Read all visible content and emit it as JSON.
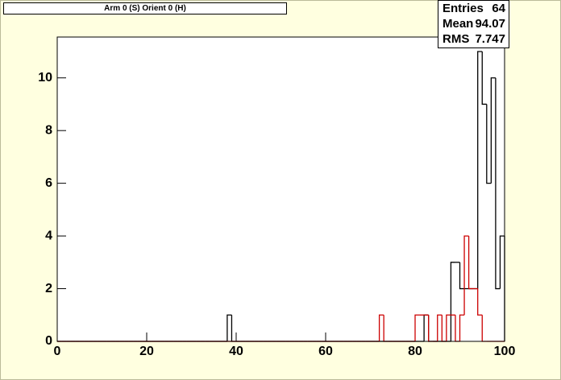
{
  "chart_data": {
    "type": "histogram",
    "title": "Arm 0 (S) Orient 0 (H)",
    "bins": [
      0,
      1,
      2,
      3,
      4,
      5,
      6,
      7,
      8,
      9,
      10,
      11,
      12,
      13,
      14,
      15,
      16,
      17,
      18,
      19,
      20,
      21,
      22,
      23,
      24,
      25,
      26,
      27,
      28,
      29,
      30,
      31,
      32,
      33,
      34,
      35,
      36,
      37,
      38,
      39,
      40,
      41,
      42,
      43,
      44,
      45,
      46,
      47,
      48,
      49,
      50,
      51,
      52,
      53,
      54,
      55,
      56,
      57,
      58,
      59,
      60,
      61,
      62,
      63,
      64,
      65,
      66,
      67,
      68,
      69,
      70,
      71,
      72,
      73,
      74,
      75,
      76,
      77,
      78,
      79,
      80,
      81,
      82,
      83,
      84,
      85,
      86,
      87,
      88,
      89,
      90,
      91,
      92,
      93,
      94,
      95,
      96,
      97,
      98,
      99,
      100
    ],
    "series": [
      {
        "color": "#000000",
        "values": [
          0,
          0,
          0,
          0,
          0,
          0,
          0,
          0,
          0,
          0,
          0,
          0,
          0,
          0,
          0,
          0,
          0,
          0,
          0,
          0,
          0,
          0,
          0,
          0,
          0,
          0,
          0,
          0,
          0,
          0,
          0,
          0,
          0,
          0,
          0,
          0,
          0,
          0,
          1,
          0,
          0,
          0,
          0,
          0,
          0,
          0,
          0,
          0,
          0,
          0,
          0,
          0,
          0,
          0,
          0,
          0,
          0,
          0,
          0,
          0,
          0,
          0,
          0,
          0,
          0,
          0,
          0,
          0,
          0,
          0,
          0,
          0,
          0,
          0,
          0,
          0,
          0,
          0,
          0,
          0,
          0,
          0,
          1,
          0,
          0,
          0,
          0,
          0,
          3,
          3,
          2,
          2,
          2,
          2,
          11,
          9,
          6,
          10,
          2,
          4
        ]
      },
      {
        "color": "#cc0000",
        "values": [
          0,
          0,
          0,
          0,
          0,
          0,
          0,
          0,
          0,
          0,
          0,
          0,
          0,
          0,
          0,
          0,
          0,
          0,
          0,
          0,
          0,
          0,
          0,
          0,
          0,
          0,
          0,
          0,
          0,
          0,
          0,
          0,
          0,
          0,
          0,
          0,
          0,
          0,
          0,
          0,
          0,
          0,
          0,
          0,
          0,
          0,
          0,
          0,
          0,
          0,
          0,
          0,
          0,
          0,
          0,
          0,
          0,
          0,
          0,
          0,
          0,
          0,
          0,
          0,
          0,
          0,
          0,
          0,
          0,
          0,
          0,
          0,
          1,
          0,
          0,
          0,
          0,
          0,
          0,
          0,
          1,
          1,
          1,
          0,
          0,
          1,
          0,
          1,
          1,
          0,
          1,
          4,
          2,
          2,
          1,
          0,
          0,
          0,
          0,
          0
        ]
      }
    ],
    "xlim": [
      0,
      100
    ],
    "xticks": [
      0,
      20,
      40,
      60,
      80,
      100
    ],
    "ylim": [
      0,
      11.55
    ],
    "yticks": [
      0,
      2,
      4,
      6,
      8,
      10
    ],
    "stats": [
      {
        "label": "Entries",
        "value": 64
      },
      {
        "label": "Mean",
        "value": 94.07
      },
      {
        "label": "RMS",
        "value": 7.747
      }
    ]
  }
}
